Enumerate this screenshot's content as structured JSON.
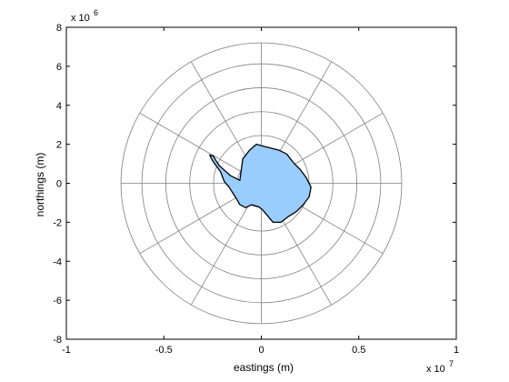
{
  "chart_data": {
    "type": "map",
    "xlabel": "eastings (m)",
    "ylabel": "northings (m)",
    "xlim": [
      -10000000,
      10000000
    ],
    "ylim": [
      -8000000,
      8000000
    ],
    "x_ticks": [
      -10000000,
      -5000000,
      0,
      5000000,
      10000000
    ],
    "x_tick_labels": [
      "-1",
      "-0.5",
      "0",
      "0.5",
      "1"
    ],
    "y_ticks": [
      -8000000,
      -6000000,
      -4000000,
      -2000000,
      0,
      2000000,
      4000000,
      6000000,
      8000000
    ],
    "y_tick_labels": [
      "-8",
      "-6",
      "-4",
      "-2",
      "0",
      "2",
      "4",
      "6",
      "8"
    ],
    "x_exponent": {
      "base": "x 10",
      "power": "7"
    },
    "y_exponent": {
      "base": "x 10",
      "power": "6"
    },
    "grid_circle_radii": [
      1225000,
      2450000,
      3675000,
      4900000,
      6125000,
      7200000
    ],
    "meridian_angles_deg": [
      0,
      30,
      60,
      90,
      120,
      150,
      180,
      210,
      240,
      270,
      300,
      330
    ],
    "landmass_fill": "#99ccff",
    "landmass_stroke": "#000000",
    "grid_color": "#808080",
    "landmass_outline": [
      [
        -2460000,
        1400000
      ],
      [
        -2350000,
        1200000
      ],
      [
        -2150000,
        900000
      ],
      [
        -1600000,
        400000
      ],
      [
        -1100000,
        150000
      ],
      [
        -950000,
        1250000
      ],
      [
        -600000,
        1700000
      ],
      [
        -250000,
        2000000
      ],
      [
        100000,
        1900000
      ],
      [
        500000,
        1800000
      ],
      [
        900000,
        1700000
      ],
      [
        1300000,
        1500000
      ],
      [
        1700000,
        1000000
      ],
      [
        2000000,
        700000
      ],
      [
        2300000,
        300000
      ],
      [
        2550000,
        -200000
      ],
      [
        2450000,
        -700000
      ],
      [
        2150000,
        -1100000
      ],
      [
        1800000,
        -1450000
      ],
      [
        1400000,
        -1700000
      ],
      [
        1000000,
        -2000000
      ],
      [
        600000,
        -2000000
      ],
      [
        350000,
        -1700000
      ],
      [
        50000,
        -1350000
      ],
      [
        -150000,
        -1200000
      ],
      [
        -500000,
        -1100000
      ],
      [
        -800000,
        -1250000
      ],
      [
        -1100000,
        -1100000
      ],
      [
        -1300000,
        -750000
      ],
      [
        -1650000,
        -200000
      ],
      [
        -1900000,
        100000
      ],
      [
        -2100000,
        600000
      ],
      [
        -2500000,
        1150000
      ],
      [
        -2650000,
        1450000
      ]
    ]
  }
}
